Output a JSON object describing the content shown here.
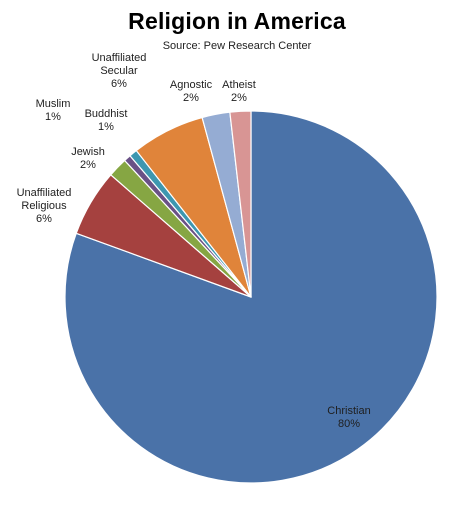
{
  "chart_data": {
    "type": "pie",
    "title": "Religion in America",
    "subtitle": "Source: Pew Research Center",
    "start_angle_deg": 0,
    "direction": "clockwise",
    "grid": false,
    "legend": "none",
    "slices": [
      {
        "label": "Christian",
        "label_lines": [
          "Christian"
        ],
        "pct_text": "80%",
        "value": 80.0,
        "color": "#4a72a8"
      },
      {
        "label": "Unaffiliated Religious",
        "label_lines": [
          "Unaffiliated",
          "Religious"
        ],
        "pct_text": "6%",
        "value": 5.8,
        "color": "#a5413f"
      },
      {
        "label": "Jewish",
        "label_lines": [
          "Jewish"
        ],
        "pct_text": "2%",
        "value": 1.7,
        "color": "#86a643"
      },
      {
        "label": "Muslim",
        "label_lines": [
          "Muslim"
        ],
        "pct_text": "1%",
        "value": 0.6,
        "color": "#6a5186"
      },
      {
        "label": "Buddhist",
        "label_lines": [
          "Buddhist"
        ],
        "pct_text": "1%",
        "value": 0.7,
        "color": "#3d97b0"
      },
      {
        "label": "Unaffiliated Secular",
        "label_lines": [
          "Unaffiliated",
          "Secular"
        ],
        "pct_text": "6%",
        "value": 6.3,
        "color": "#e0843a"
      },
      {
        "label": "Agnostic",
        "label_lines": [
          "Agnostic"
        ],
        "pct_text": "2%",
        "value": 2.4,
        "color": "#95acd3"
      },
      {
        "label": "Atheist",
        "label_lines": [
          "Atheist"
        ],
        "pct_text": "2%",
        "value": 1.8,
        "color": "#d89594"
      }
    ]
  }
}
